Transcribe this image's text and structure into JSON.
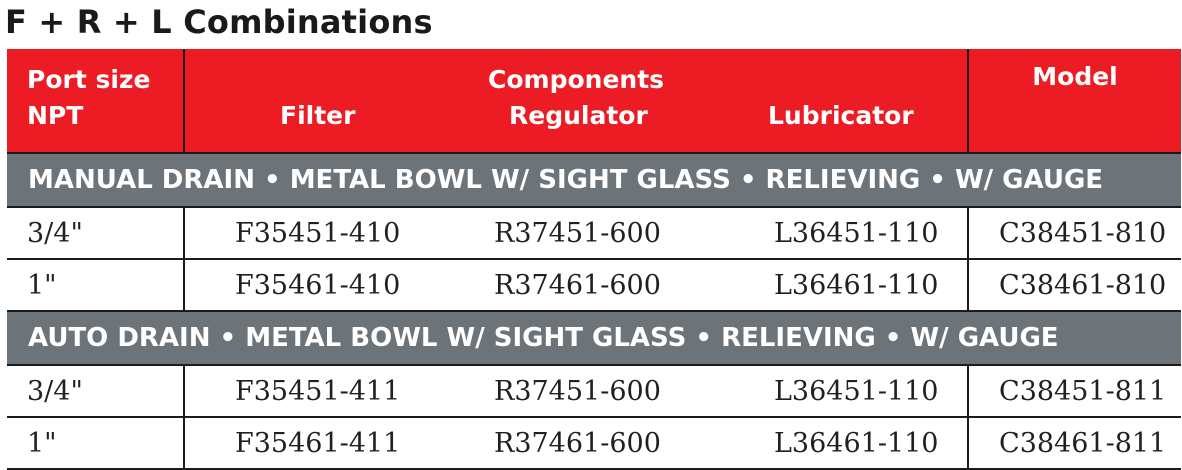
{
  "title": "F + R + L Combinations",
  "header": {
    "port_line1": "Port size",
    "port_line2": "NPT",
    "components": "Components",
    "filter": "Filter",
    "regulator": "Regulator",
    "lubricator": "Lubricator",
    "model": "Model"
  },
  "sections": [
    {
      "label": "MANUAL DRAIN • METAL BOWL W/ SIGHT GLASS • RELIEVING • W/ GAUGE",
      "rows": [
        {
          "port": "3/4\"",
          "filter": "F35451-410",
          "regulator": "R37451-600",
          "lubricator": "L36451-110",
          "model": "C38451-810"
        },
        {
          "port": "1\"",
          "filter": "F35461-410",
          "regulator": "R37461-600",
          "lubricator": "L36461-110",
          "model": "C38461-810"
        }
      ]
    },
    {
      "label": "AUTO DRAIN • METAL BOWL W/ SIGHT GLASS • RELIEVING • W/ GAUGE",
      "rows": [
        {
          "port": "3/4\"",
          "filter": "F35451-411",
          "regulator": "R37451-600",
          "lubricator": "L36451-110",
          "model": "C38451-811"
        },
        {
          "port": "1\"",
          "filter": "F35461-411",
          "regulator": "R37461-600",
          "lubricator": "L36461-110",
          "model": "C38461-811"
        }
      ]
    }
  ],
  "colors": {
    "header_bg": "#ed1c24",
    "section_bg": "#6d7479",
    "text": "#231f20"
  }
}
